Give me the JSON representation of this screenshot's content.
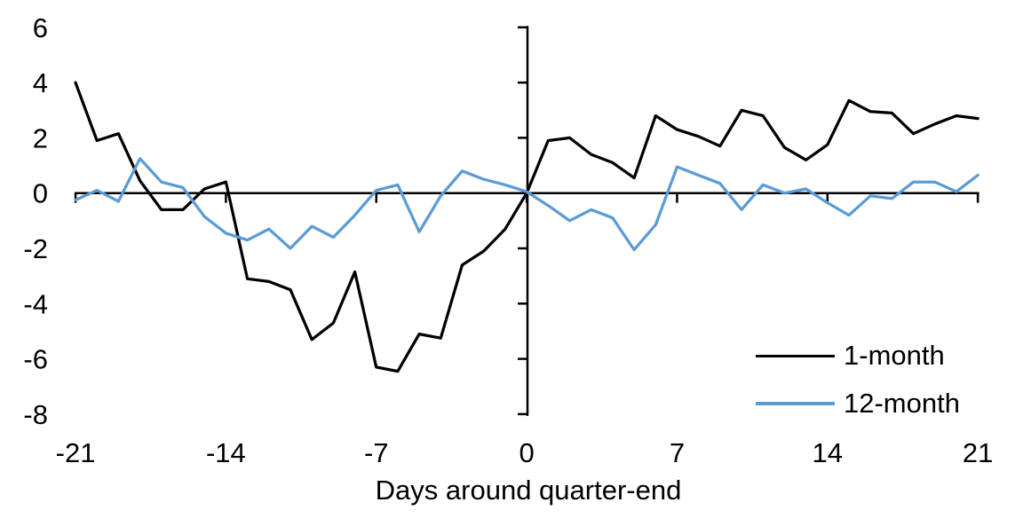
{
  "chart_data": {
    "type": "line",
    "title": "",
    "xlabel": "Days around quarter-end",
    "ylabel": "",
    "xlim": [
      -21,
      21
    ],
    "ylim": [
      -8,
      6
    ],
    "grid": false,
    "legend_position": "inside-bottom-right",
    "x_ticks": [
      -21,
      -14,
      -7,
      0,
      7,
      14,
      21
    ],
    "y_ticks": [
      6,
      4,
      2,
      0,
      -2,
      -4,
      -6,
      -8
    ],
    "x": [
      -21,
      -20,
      -19,
      -18,
      -17,
      -16,
      -15,
      -14,
      -13,
      -12,
      -11,
      -10,
      -9,
      -8,
      -7,
      -6,
      -5,
      -4,
      -3,
      -2,
      -1,
      0,
      1,
      2,
      3,
      4,
      5,
      6,
      7,
      8,
      9,
      10,
      11,
      12,
      13,
      14,
      15,
      16,
      17,
      18,
      19,
      20,
      21
    ],
    "series": [
      {
        "name": "1-month",
        "color": "#000000",
        "values": [
          4.0,
          1.9,
          2.15,
          0.45,
          -0.6,
          -0.6,
          0.15,
          0.4,
          -3.1,
          -3.2,
          -3.5,
          -5.3,
          -4.7,
          -2.85,
          -6.3,
          -6.45,
          -5.1,
          -5.25,
          -2.6,
          -2.1,
          -1.3,
          0.0,
          1.9,
          2.0,
          1.4,
          1.1,
          0.55,
          2.8,
          2.3,
          2.05,
          1.7,
          3.0,
          2.8,
          1.65,
          1.2,
          1.75,
          3.35,
          2.95,
          2.9,
          2.15,
          2.5,
          2.8,
          2.7
        ]
      },
      {
        "name": "12-month",
        "color": "#5B9BD5",
        "values": [
          -0.25,
          0.1,
          -0.3,
          1.25,
          0.4,
          0.2,
          -0.85,
          -1.45,
          -1.7,
          -1.3,
          -2.0,
          -1.2,
          -1.6,
          -0.8,
          0.1,
          0.3,
          -1.4,
          -0.1,
          0.8,
          0.5,
          0.3,
          0.05,
          -0.45,
          -1.0,
          -0.6,
          -0.9,
          -2.05,
          -1.15,
          0.95,
          0.65,
          0.35,
          -0.6,
          0.3,
          0.0,
          0.15,
          -0.35,
          -0.8,
          -0.1,
          -0.2,
          0.4,
          0.4,
          0.05,
          0.65
        ]
      }
    ]
  },
  "legend": {
    "items": [
      {
        "label": "1-month"
      },
      {
        "label": "12-month"
      }
    ]
  },
  "axis_titles": {
    "x": "Days around quarter-end"
  }
}
